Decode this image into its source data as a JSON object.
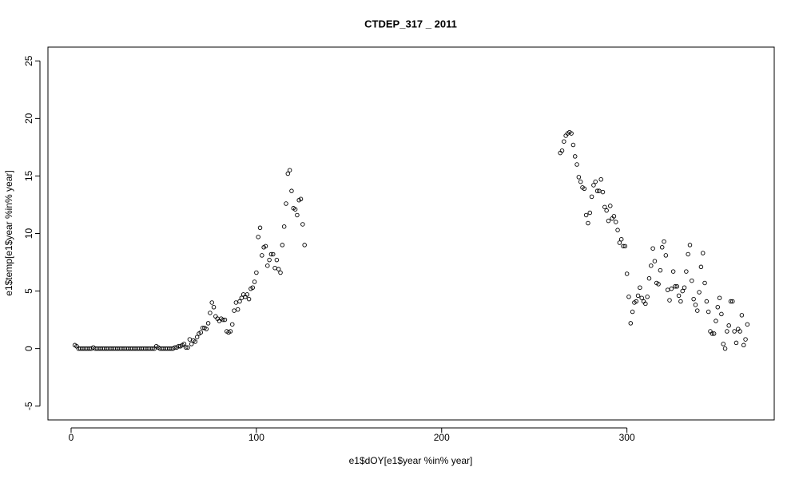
{
  "chart_data": {
    "type": "scatter",
    "title": "CTDEP_317 _ 2011",
    "x_label": "e1$dOY[e1$year %in% year]",
    "y_label": "e1$temp[e1$year %in% year]",
    "color": "#000000",
    "marker": "open-circle",
    "grid": false,
    "xlim": [
      -12.5,
      379.5
    ],
    "ylim": [
      -6.2,
      26.2
    ],
    "xticks": [
      0,
      100,
      200,
      300
    ],
    "yticks": [
      -5,
      0,
      5,
      10,
      15,
      20,
      25
    ],
    "x": [
      2,
      3,
      4,
      5,
      6,
      7,
      8,
      9,
      10,
      11,
      12,
      13,
      14,
      15,
      16,
      17,
      18,
      19,
      20,
      21,
      22,
      23,
      24,
      25,
      26,
      27,
      28,
      29,
      30,
      31,
      32,
      33,
      34,
      35,
      36,
      37,
      38,
      39,
      40,
      41,
      42,
      43,
      44,
      45,
      46,
      47,
      48,
      49,
      50,
      51,
      52,
      53,
      54,
      55,
      56,
      57,
      58,
      59,
      60,
      61,
      62,
      63,
      64,
      65,
      66,
      67,
      68,
      69,
      70,
      71,
      72,
      73,
      74,
      75,
      76,
      77,
      78,
      79,
      80,
      81,
      82,
      83,
      84,
      85,
      86,
      87,
      88,
      89,
      90,
      91,
      92,
      93,
      94,
      95,
      96,
      97,
      98,
      99,
      100,
      101,
      102,
      103,
      104,
      105,
      106,
      107,
      108,
      109,
      110,
      111,
      112,
      113,
      114,
      115,
      116,
      117,
      118,
      119,
      120,
      121,
      122,
      123,
      124,
      125,
      126,
      264,
      265,
      266,
      267,
      268,
      269,
      270,
      271,
      272,
      273,
      274,
      275,
      276,
      277,
      278,
      279,
      280,
      281,
      282,
      283,
      284,
      285,
      286,
      287,
      288,
      289,
      290,
      291,
      292,
      293,
      294,
      295,
      296,
      297,
      298,
      299,
      300,
      301,
      302,
      303,
      304,
      305,
      306,
      307,
      308,
      309,
      310,
      311,
      312,
      313,
      314,
      315,
      316,
      317,
      318,
      319,
      320,
      321,
      322,
      323,
      324,
      325,
      326,
      327,
      328,
      329,
      330,
      331,
      332,
      333,
      334,
      335,
      336,
      337,
      338,
      339,
      340,
      341,
      342,
      343,
      344,
      345,
      346,
      347,
      348,
      349,
      350,
      351,
      352,
      353,
      354,
      355,
      356,
      357,
      358,
      359,
      360,
      361,
      362,
      363,
      364,
      365
    ],
    "values": [
      0.3,
      0.2,
      0,
      0,
      0,
      0,
      0,
      0,
      0,
      0,
      0.1,
      0,
      0,
      0,
      0,
      0,
      0,
      0,
      0,
      0,
      0,
      0,
      0,
      0,
      0,
      0,
      0,
      0,
      0,
      0,
      0,
      0,
      0,
      0,
      0,
      0,
      0,
      0,
      0,
      0,
      0,
      0,
      0,
      0,
      0.2,
      0.1,
      0,
      0,
      0,
      0,
      0,
      0,
      0,
      0,
      0.1,
      0.1,
      0.2,
      0.2,
      0.3,
      0.4,
      0.1,
      0.1,
      0.8,
      0.4,
      0.7,
      0.6,
      1.0,
      1.3,
      1.4,
      1.8,
      1.8,
      1.7,
      2.2,
      3.1,
      4.0,
      3.6,
      2.8,
      2.6,
      2.4,
      2.6,
      2.5,
      2.5,
      1.5,
      1.4,
      1.5,
      2.1,
      3.3,
      4.0,
      3.4,
      4.1,
      4.4,
      4.7,
      4.5,
      4.7,
      4.3,
      5.2,
      5.3,
      5.8,
      6.6,
      9.7,
      10.5,
      8.1,
      8.8,
      8.9,
      7.2,
      7.7,
      8.2,
      8.2,
      7.0,
      7.7,
      6.9,
      6.6,
      9.0,
      10.6,
      12.6,
      15.2,
      15.5,
      13.7,
      12.2,
      12.1,
      11.6,
      12.9,
      13.0,
      10.8,
      9.0,
      17.0,
      17.2,
      18.0,
      18.5,
      18.7,
      18.8,
      18.7,
      17.7,
      16.7,
      16.0,
      14.9,
      14.5,
      14.0,
      13.9,
      11.6,
      10.9,
      11.8,
      13.2,
      14.2,
      14.5,
      13.7,
      13.7,
      14.7,
      13.6,
      12.3,
      12.0,
      11.1,
      12.4,
      11.3,
      11.5,
      11.0,
      10.3,
      9.2,
      9.5,
      8.9,
      8.9,
      6.5,
      4.5,
      2.2,
      3.2,
      4.0,
      4.1,
      4.6,
      5.3,
      4.4,
      4.1,
      3.9,
      4.5,
      6.1,
      7.2,
      8.7,
      7.6,
      5.7,
      5.6,
      6.8,
      8.8,
      9.3,
      8.1,
      5.1,
      4.2,
      5.2,
      6.7,
      5.4,
      5.4,
      4.6,
      4.1,
      5.0,
      5.3,
      6.7,
      8.2,
      9.0,
      5.9,
      4.3,
      3.8,
      3.3,
      4.9,
      7.1,
      8.3,
      5.7,
      4.1,
      3.2,
      1.5,
      1.3,
      1.3,
      2.4,
      3.6,
      4.4,
      3.0,
      0.4,
      0.0,
      1.5,
      2.0,
      4.1,
      4.1,
      1.5,
      0.5,
      1.7,
      1.5,
      2.9,
      0.3,
      0.8,
      2.1
    ]
  }
}
